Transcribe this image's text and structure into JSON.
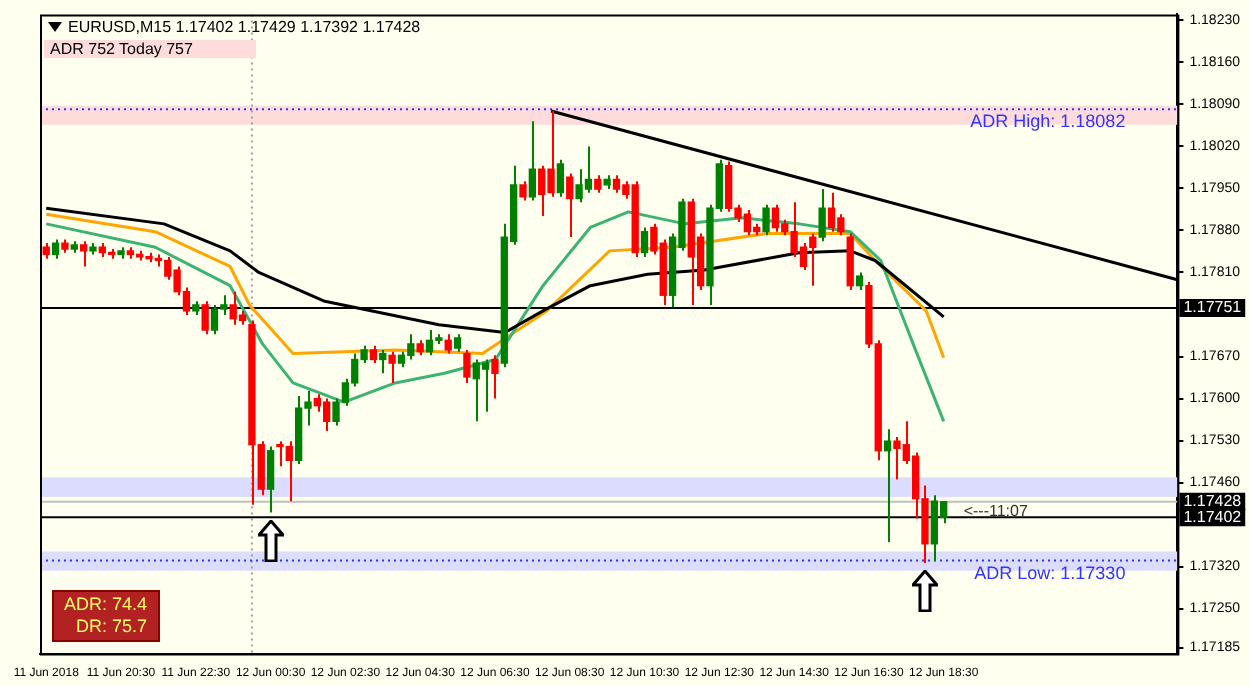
{
  "chart_data": {
    "type": "candlestick",
    "title": "EURUSD,M15  1.17402 1.17429 1.17392 1.17428",
    "subtitle": "ADR 752   Today 757",
    "x": [
      "2018-06-11T18:30",
      "2018-06-11T18:45",
      "2018-06-11T19:00",
      "2018-06-11T19:15",
      "2018-06-11T19:30",
      "2018-06-11T19:45",
      "2018-06-11T20:00",
      "2018-06-11T20:15",
      "2018-06-11T20:30",
      "2018-06-11T20:45",
      "2018-06-11T21:00",
      "2018-06-11T21:15",
      "2018-06-11T21:30",
      "2018-06-11T21:45",
      "2018-06-11T22:00",
      "2018-06-11T22:15",
      "2018-06-11T22:30",
      "2018-06-11T22:45",
      "2018-06-11T23:00",
      "2018-06-11T23:15",
      "2018-06-11T23:30",
      "2018-06-11T23:45",
      "2018-06-12T00:00",
      "2018-06-12T00:15",
      "2018-06-12T00:30",
      "2018-06-12T00:45",
      "2018-06-12T01:00",
      "2018-06-12T01:15",
      "2018-06-12T01:30",
      "2018-06-12T01:45",
      "2018-06-12T02:00",
      "2018-06-12T02:15",
      "2018-06-12T02:30",
      "2018-06-12T02:45",
      "2018-06-12T03:00",
      "2018-06-12T03:15",
      "2018-06-12T03:30",
      "2018-06-12T03:45",
      "2018-06-12T04:00",
      "2018-06-12T04:15",
      "2018-06-12T04:30",
      "2018-06-12T04:45",
      "2018-06-12T05:00",
      "2018-06-12T05:15",
      "2018-06-12T05:30",
      "2018-06-12T05:45",
      "2018-06-12T06:00",
      "2018-06-12T06:15",
      "2018-06-12T06:30",
      "2018-06-12T06:45",
      "2018-06-12T07:00",
      "2018-06-12T07:15",
      "2018-06-12T07:30",
      "2018-06-12T07:45",
      "2018-06-12T08:00",
      "2018-06-12T08:15",
      "2018-06-12T08:30",
      "2018-06-12T08:45",
      "2018-06-12T09:00",
      "2018-06-12T09:15",
      "2018-06-12T09:30",
      "2018-06-12T09:45",
      "2018-06-12T10:00",
      "2018-06-12T10:15",
      "2018-06-12T10:30",
      "2018-06-12T10:45",
      "2018-06-12T11:00",
      "2018-06-12T11:15",
      "2018-06-12T11:30",
      "2018-06-12T11:45",
      "2018-06-12T12:00",
      "2018-06-12T12:15",
      "2018-06-12T12:30",
      "2018-06-12T12:45",
      "2018-06-12T13:00",
      "2018-06-12T13:15",
      "2018-06-12T13:30",
      "2018-06-12T13:45",
      "2018-06-12T14:00",
      "2018-06-12T14:15",
      "2018-06-12T14:30",
      "2018-06-12T14:45",
      "2018-06-12T15:00",
      "2018-06-12T15:15",
      "2018-06-12T15:30",
      "2018-06-12T15:45",
      "2018-06-12T16:00",
      "2018-06-12T16:15",
      "2018-06-12T16:30",
      "2018-06-12T16:45",
      "2018-06-12T17:00",
      "2018-06-12T17:15",
      "2018-06-12T17:30",
      "2018-06-12T17:45",
      "2018-06-12T18:00",
      "2018-06-12T18:15",
      "2018-06-12T18:30"
    ],
    "ohlc": [
      [
        1.17852,
        1.17859,
        1.17833,
        1.1784
      ],
      [
        1.1784,
        1.17865,
        1.17833,
        1.17859
      ],
      [
        1.17859,
        1.17865,
        1.17843,
        1.17849
      ],
      [
        1.17849,
        1.17862,
        1.17843,
        1.17856
      ],
      [
        1.17856,
        1.17862,
        1.1782,
        1.17846
      ],
      [
        1.17846,
        1.17859,
        1.1784,
        1.17852
      ],
      [
        1.17852,
        1.17859,
        1.17836,
        1.17843
      ],
      [
        1.17843,
        1.17849,
        1.17833,
        1.1784
      ],
      [
        1.1784,
        1.17852,
        1.17833,
        1.17846
      ],
      [
        1.17846,
        1.17852,
        1.17833,
        1.1784
      ],
      [
        1.1784,
        1.17846,
        1.1783,
        1.17836
      ],
      [
        1.17836,
        1.17843,
        1.17827,
        1.17833
      ],
      [
        1.17833,
        1.1784,
        1.1782,
        1.1783
      ],
      [
        1.1783,
        1.17836,
        1.17798,
        1.17804
      ],
      [
        1.17814,
        1.1782,
        1.17772,
        1.17778
      ],
      [
        1.17778,
        1.17785,
        1.17739,
        1.17746
      ],
      [
        1.17746,
        1.17762,
        1.17739,
        1.17756
      ],
      [
        1.17756,
        1.17762,
        1.17707,
        1.17714
      ],
      [
        1.17714,
        1.17756,
        1.17707,
        1.17749
      ],
      [
        1.17749,
        1.17772,
        1.17739,
        1.17756
      ],
      [
        1.17756,
        1.17778,
        1.17723,
        1.17733
      ],
      [
        1.17739,
        1.17746,
        1.17723,
        1.1773
      ],
      [
        1.17723,
        1.1773,
        1.17423,
        1.17523
      ],
      [
        1.17523,
        1.17529,
        1.17439,
        1.17449
      ],
      [
        1.17449,
        1.1752,
        1.1741,
        1.17513
      ],
      [
        1.17523,
        1.17529,
        1.17487,
        1.1752
      ],
      [
        1.1752,
        1.17529,
        1.17429,
        1.17497
      ],
      [
        1.17497,
        1.17604,
        1.17491,
        1.17584
      ],
      [
        1.17584,
        1.17613,
        1.17555,
        1.17594
      ],
      [
        1.176,
        1.17607,
        1.17578,
        1.17588
      ],
      [
        1.17594,
        1.176,
        1.17546,
        1.17562
      ],
      [
        1.17562,
        1.176,
        1.17555,
        1.17594
      ],
      [
        1.17594,
        1.17633,
        1.17588,
        1.17626
      ],
      [
        1.17626,
        1.17675,
        1.1762,
        1.17665
      ],
      [
        1.17665,
        1.17688,
        1.17659,
        1.17681
      ],
      [
        1.17681,
        1.17688,
        1.17659,
        1.17665
      ],
      [
        1.17665,
        1.17681,
        1.17642,
        1.17675
      ],
      [
        1.17672,
        1.17678,
        1.17626,
        1.17659
      ],
      [
        1.17659,
        1.17678,
        1.17652,
        1.17672
      ],
      [
        1.17672,
        1.17707,
        1.17665,
        1.17691
      ],
      [
        1.17691,
        1.17697,
        1.17672,
        1.17678
      ],
      [
        1.17678,
        1.17714,
        1.17672,
        1.17697
      ],
      [
        1.17697,
        1.17707,
        1.17691,
        1.17701
      ],
      [
        1.17697,
        1.17707,
        1.17675,
        1.17681
      ],
      [
        1.17684,
        1.17707,
        1.17678,
        1.17701
      ],
      [
        1.17675,
        1.17681,
        1.17626,
        1.17636
      ],
      [
        1.17633,
        1.17665,
        1.17562,
        1.17659
      ],
      [
        1.17649,
        1.17665,
        1.17578,
        1.17659
      ],
      [
        1.17665,
        1.17672,
        1.176,
        1.17642
      ],
      [
        1.17659,
        1.17891,
        1.17652,
        1.17869
      ],
      [
        1.17862,
        1.17988,
        1.17856,
        1.17956
      ],
      [
        1.17956,
        1.17962,
        1.1793,
        1.17936
      ],
      [
        1.17936,
        1.18062,
        1.1793,
        1.17982
      ],
      [
        1.17982,
        1.17988,
        1.17904,
        1.1794
      ],
      [
        1.17982,
        1.18079,
        1.17936,
        1.17943
      ],
      [
        1.17943,
        1.17998,
        1.17936,
        1.17991
      ],
      [
        1.17969,
        1.17975,
        1.17869,
        1.17933
      ],
      [
        1.17933,
        1.17982,
        1.17927,
        1.17956
      ],
      [
        1.17949,
        1.1802,
        1.17943,
        1.17965
      ],
      [
        1.17965,
        1.17972,
        1.17943,
        1.17949
      ],
      [
        1.17956,
        1.17972,
        1.17949,
        1.17965
      ],
      [
        1.17965,
        1.17972,
        1.17943,
        1.17949
      ],
      [
        1.17956,
        1.17962,
        1.17933,
        1.1794
      ],
      [
        1.17956,
        1.17962,
        1.17836,
        1.17843
      ],
      [
        1.17843,
        1.17885,
        1.17836,
        1.17878
      ],
      [
        1.17885,
        1.17891,
        1.1784,
        1.17846
      ],
      [
        1.17859,
        1.17865,
        1.17756,
        1.17772
      ],
      [
        1.17772,
        1.17875,
        1.17752,
        1.17869
      ],
      [
        1.17852,
        1.17933,
        1.17846,
        1.17927
      ],
      [
        1.17927,
        1.17933,
        1.17756,
        1.17836
      ],
      [
        1.17869,
        1.17875,
        1.17781,
        1.17788
      ],
      [
        1.17788,
        1.17923,
        1.17756,
        1.17917
      ],
      [
        1.17917,
        1.17998,
        1.17911,
        1.17991
      ],
      [
        1.17988,
        1.17995,
        1.17911,
        1.17917
      ],
      [
        1.17917,
        1.17923,
        1.17894,
        1.17901
      ],
      [
        1.17907,
        1.17914,
        1.17872,
        1.17878
      ],
      [
        1.17885,
        1.17891,
        1.17872,
        1.17878
      ],
      [
        1.17878,
        1.17923,
        1.17872,
        1.17917
      ],
      [
        1.17917,
        1.17923,
        1.17878,
        1.17885
      ],
      [
        1.17891,
        1.17898,
        1.17872,
        1.17878
      ],
      [
        1.17878,
        1.17927,
        1.17836,
        1.17843
      ],
      [
        1.17852,
        1.17859,
        1.17814,
        1.1782
      ],
      [
        1.17869,
        1.17875,
        1.17788,
        1.17852
      ],
      [
        1.17869,
        1.17949,
        1.17862,
        1.17917
      ],
      [
        1.17917,
        1.17943,
        1.17878,
        1.17885
      ],
      [
        1.17901,
        1.17907,
        1.17872,
        1.17878
      ],
      [
        1.17869,
        1.17875,
        1.17781,
        1.17788
      ],
      [
        1.17788,
        1.1781,
        1.17781,
        1.17804
      ],
      [
        1.17788,
        1.17794,
        1.17684,
        1.17691
      ],
      [
        1.17691,
        1.17697,
        1.17497,
        1.17513
      ],
      [
        1.17513,
        1.17549,
        1.17361,
        1.17529
      ],
      [
        1.17529,
        1.17536,
        1.17465,
        1.17517
      ],
      [
        1.17523,
        1.17562,
        1.17491,
        1.17497
      ],
      [
        1.17504,
        1.1751,
        1.174,
        1.17433
      ],
      [
        1.17433,
        1.17455,
        1.17326,
        1.17358
      ],
      [
        1.17358,
        1.17439,
        1.17329,
        1.17429
      ],
      [
        1.17402,
        1.17429,
        1.17392,
        1.17428
      ]
    ],
    "colors": [
      "#ff0000",
      "#008000",
      "#ff0000",
      "#008000",
      "#ff0000",
      "#008000",
      "#ff0000",
      "#ff0000",
      "#008000",
      "#ff0000",
      "#ff0000",
      "#ff0000",
      "#ff0000",
      "#ff0000",
      "#ff0000",
      "#ff0000",
      "#008000",
      "#ff0000",
      "#008000",
      "#008000",
      "#ff0000",
      "#ff0000",
      "#ff0000",
      "#ff0000",
      "#008000",
      "#ff0000",
      "#ff0000",
      "#008000",
      "#008000",
      "#ff0000",
      "#ff0000",
      "#008000",
      "#008000",
      "#008000",
      "#008000",
      "#ff0000",
      "#008000",
      "#ff0000",
      "#008000",
      "#008000",
      "#ff0000",
      "#008000",
      "#008000",
      "#ff0000",
      "#008000",
      "#ff0000",
      "#008000",
      "#008000",
      "#ff0000",
      "#008000",
      "#008000",
      "#ff0000",
      "#008000",
      "#ff0000",
      "#ff0000",
      "#008000",
      "#ff0000",
      "#008000",
      "#008000",
      "#ff0000",
      "#008000",
      "#ff0000",
      "#ff0000",
      "#ff0000",
      "#008000",
      "#ff0000",
      "#ff0000",
      "#008000",
      "#008000",
      "#ff0000",
      "#ff0000",
      "#008000",
      "#008000",
      "#ff0000",
      "#ff0000",
      "#ff0000",
      "#ff0000",
      "#008000",
      "#ff0000",
      "#ff0000",
      "#ff0000",
      "#ff0000",
      "#ff0000",
      "#008000",
      "#ff0000",
      "#ff0000",
      "#ff0000",
      "#008000",
      "#ff0000",
      "#ff0000",
      "#008000",
      "#ff0000",
      "#ff0000",
      "#ff0000",
      "#ff0000",
      "#008000",
      "#008000"
    ],
    "series": [
      {
        "type": "line",
        "color": "#000000",
        "x": [
          "2018-06-11T18:30",
          "2018-06-11T21:39",
          "2018-06-11T23:25",
          "2018-06-12T00:11",
          "2018-06-12T01:57",
          "2018-06-12T05:00",
          "2018-06-12T06:46",
          "2018-06-12T07:47",
          "2018-06-12T09:03",
          "2018-06-12T10:35",
          "2018-06-12T12:06",
          "2018-06-12T14:38",
          "2018-06-12T16:00",
          "2018-06-12T16:40",
          "2018-06-12T18:30"
        ],
        "values": [
          1.17917,
          1.17891,
          1.17846,
          1.1781,
          1.17762,
          1.17723,
          1.1771,
          1.17746,
          1.17788,
          1.17807,
          1.17814,
          1.17843,
          1.17846,
          1.1783,
          1.17736
        ]
      },
      {
        "type": "line",
        "color": "#3cb371",
        "x": [
          "2018-06-11T18:30",
          "2018-06-11T21:25",
          "2018-06-11T23:25",
          "2018-06-12T00:17",
          "2018-06-12T01:06",
          "2018-06-12T02:28",
          "2018-06-12T03:50",
          "2018-06-12T05:09",
          "2018-06-12T06:31",
          "2018-06-12T07:47",
          "2018-06-12T09:03",
          "2018-06-12T10:04",
          "2018-06-12T11:35",
          "2018-06-12T13:07",
          "2018-06-12T14:38",
          "2018-06-12T16:00",
          "2018-06-12T16:49",
          "2018-06-12T17:41",
          "2018-06-12T18:30"
        ],
        "values": [
          1.17891,
          1.17852,
          1.17788,
          1.17691,
          1.17626,
          1.17594,
          1.17626,
          1.17642,
          1.17665,
          1.17788,
          1.17885,
          1.17911,
          1.17891,
          1.17901,
          1.17891,
          1.17878,
          1.1783,
          1.17691,
          1.17562
        ]
      },
      {
        "type": "line",
        "color": "#ffa500",
        "x": [
          "2018-06-11T18:30",
          "2018-06-11T21:25",
          "2018-06-11T23:25",
          "2018-06-11T23:56",
          "2018-06-12T01:06",
          "2018-06-12T03:50",
          "2018-06-12T06:10",
          "2018-06-12T07:53",
          "2018-06-12T09:34",
          "2018-06-12T11:14",
          "2018-06-12T13:46",
          "2018-06-12T16:00",
          "2018-06-12T16:40",
          "2018-06-12T18:02",
          "2018-06-12T18:30"
        ],
        "values": [
          1.17907,
          1.17878,
          1.1782,
          1.17756,
          1.17675,
          1.17681,
          1.17675,
          1.17746,
          1.17846,
          1.17852,
          1.17875,
          1.17875,
          1.1783,
          1.17746,
          1.17668
        ]
      },
      {
        "type": "line",
        "color": "#000000",
        "x": [
          "2018-06-12T08:00",
          "2018-06-13T00:45"
        ],
        "values": [
          1.18079,
          1.17798
        ]
      }
    ],
    "xlim": [
      "2018-06-11T18:20",
      "2018-06-13T00:45"
    ],
    "xticks": [
      {
        "value": "2018-06-11T18:30",
        "label": "11 Jun 2018"
      },
      {
        "value": "2018-06-11T20:30",
        "label": "11 Jun 20:30"
      },
      {
        "value": "2018-06-11T22:30",
        "label": "11 Jun 22:30"
      },
      {
        "value": "2018-06-12T00:30",
        "label": "12 Jun 00:30"
      },
      {
        "value": "2018-06-12T02:30",
        "label": "12 Jun 02:30"
      },
      {
        "value": "2018-06-12T04:30",
        "label": "12 Jun 04:30"
      },
      {
        "value": "2018-06-12T06:30",
        "label": "12 Jun 06:30"
      },
      {
        "value": "2018-06-12T08:30",
        "label": "12 Jun 08:30"
      },
      {
        "value": "2018-06-12T10:30",
        "label": "12 Jun 10:30"
      },
      {
        "value": "2018-06-12T12:30",
        "label": "12 Jun 12:30"
      },
      {
        "value": "2018-06-12T14:30",
        "label": "12 Jun 14:30"
      },
      {
        "value": "2018-06-12T16:30",
        "label": "12 Jun 16:30"
      },
      {
        "value": "2018-06-12T18:30",
        "label": "12 Jun 18:30"
      }
    ],
    "ylim": [
      1.17175,
      1.1824
    ],
    "yticks": [
      {
        "value": 1.1823,
        "label": "1.18230"
      },
      {
        "value": 1.1816,
        "label": "1.18160"
      },
      {
        "value": 1.1809,
        "label": "1.18090"
      },
      {
        "value": 1.1802,
        "label": "1.18020"
      },
      {
        "value": 1.1795,
        "label": "1.17950"
      },
      {
        "value": 1.1788,
        "label": "1.17880"
      },
      {
        "value": 1.1781,
        "label": "1.17810"
      },
      {
        "value": 1.1767,
        "label": "1.17670"
      },
      {
        "value": 1.176,
        "label": "1.17600"
      },
      {
        "value": 1.1753,
        "label": "1.17530"
      },
      {
        "value": 1.1746,
        "label": "1.17460"
      },
      {
        "value": 1.1732,
        "label": "1.17320"
      },
      {
        "value": 1.1725,
        "label": "1.17250"
      },
      {
        "value": 1.17185,
        "label": "1.17185"
      }
    ],
    "bands": [
      {
        "axis": "y",
        "from": 1.18056,
        "to": 1.18088,
        "color": "#ffdcdc"
      },
      {
        "axis": "y",
        "from": 1.17313,
        "to": 1.17345,
        "color": "#dcdcff"
      },
      {
        "axis": "y",
        "from": 1.17436,
        "to": 1.17469,
        "color": "#dcdcff"
      }
    ],
    "ref_lines": [
      {
        "axis": "x",
        "value": "2018-06-12T00:00",
        "color": "#a0a0a0",
        "line_style": "dotted"
      },
      {
        "axis": "y",
        "value": 1.18082,
        "label": "ADR High: 1.18082",
        "color": "#3333ff",
        "line_style": "dotted"
      },
      {
        "axis": "y",
        "value": 1.1733,
        "label": "ADR Low: 1.17330",
        "color": "#3333ff",
        "line_style": "dotted"
      },
      {
        "axis": "y",
        "value": 1.17751,
        "label": "1.17751",
        "color": "#000000",
        "line_style": "solid"
      },
      {
        "axis": "y",
        "value": 1.17428,
        "label": "1.17428",
        "color": "#c0c0c0",
        "line_style": "solid"
      },
      {
        "axis": "y",
        "value": 1.17402,
        "label": "1.17402",
        "color": "#000000",
        "line_style": "solid"
      }
    ],
    "annotations": [
      "ADR: 74.4\nDR: 75.7",
      {
        "text": "<---11:07",
        "x": "2018-06-12T18:30",
        "y": 1.17412
      }
    ]
  }
}
